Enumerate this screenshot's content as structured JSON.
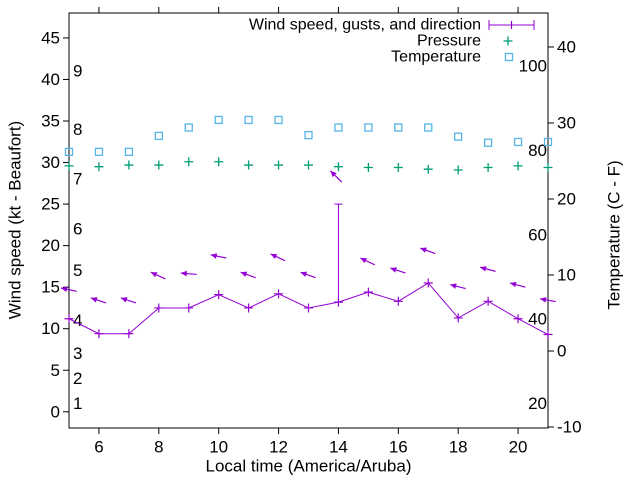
{
  "chart_data": {
    "type": "line",
    "title": "",
    "xlabel": "Local time (America/Aruba)",
    "ylabel": "Wind speed (kt - Beaufort)",
    "y2label": "Temperature (C - F)",
    "x_hours": [
      5,
      6,
      7,
      8,
      9,
      10,
      11,
      12,
      13,
      14,
      15,
      16,
      17,
      18,
      19,
      20,
      21
    ],
    "xticks": [
      6,
      8,
      10,
      12,
      14,
      16,
      18,
      20
    ],
    "yticks_kt": [
      0,
      5,
      10,
      15,
      20,
      25,
      30,
      35,
      40,
      45
    ],
    "y2ticks_c": [
      -10,
      0,
      10,
      20,
      30,
      40
    ],
    "xlim": [
      5,
      21
    ],
    "ylim_kt": [
      -1.95,
      48.0
    ],
    "y2lim_c": [
      -10.13,
      44.47
    ],
    "grid": false,
    "beaufort_labels": [
      {
        "text": "1",
        "kt": 1
      },
      {
        "text": "2",
        "kt": 4
      },
      {
        "text": "3",
        "kt": 7
      },
      {
        "text": "4",
        "kt": 11
      },
      {
        "text": "5",
        "kt": 17
      },
      {
        "text": "6",
        "kt": 22
      },
      {
        "text": "7",
        "kt": 28
      },
      {
        "text": "8",
        "kt": 34
      },
      {
        "text": "9",
        "kt": 41
      }
    ],
    "fahrenheit_labels": [
      {
        "text": "20",
        "f": 20
      },
      {
        "text": "40",
        "f": 40
      },
      {
        "text": "60",
        "f": 60
      },
      {
        "text": "80",
        "f": 80
      },
      {
        "text": "100",
        "f": 100
      }
    ],
    "series": [
      {
        "name": "Wind speed, gusts, and direction",
        "style": "line-points-vectors-errorbar",
        "color": "#9400d3",
        "wind_kt": [
          11.2,
          9.4,
          9.4,
          12.5,
          12.5,
          14.1,
          12.5,
          14.2,
          12.5,
          13.2,
          14.4,
          13.3,
          15.5,
          11.3,
          13.3,
          11.2,
          9.3
        ],
        "arrow_tip_kt": [
          14.9,
          13.7,
          13.7,
          16.8,
          16.7,
          18.9,
          16.8,
          19.0,
          16.8,
          29.0,
          18.5,
          17.3,
          19.7,
          15.3,
          17.4,
          15.5,
          13.6
        ],
        "arrow_tilt_deg": [
          12,
          18,
          18,
          25,
          5,
          12,
          20,
          25,
          20,
          45,
          25,
          18,
          20,
          14,
          15,
          15,
          10
        ],
        "gust_bar": {
          "hour": 14,
          "from_kt": 13.2,
          "to_kt": 25
        }
      },
      {
        "name": "Pressure",
        "style": "points-plus",
        "color": "#009e73",
        "values": [
          29.6,
          29.5,
          29.7,
          29.7,
          30.1,
          30.1,
          29.7,
          29.7,
          29.7,
          29.5,
          29.4,
          29.4,
          29.2,
          29.1,
          29.4,
          29.6,
          29.4
        ]
      },
      {
        "name": "Temperature",
        "style": "points-open-square",
        "color": "#56b4e9",
        "axis": "y2",
        "values_c": [
          26.2,
          26.2,
          26.2,
          28.3,
          29.4,
          30.4,
          30.4,
          30.4,
          28.4,
          29.4,
          29.4,
          29.4,
          29.4,
          28.2,
          27.4,
          27.5,
          27.5
        ]
      }
    ],
    "legend": {
      "position": "top-right-inside",
      "entries": [
        "Wind speed, gusts, and direction",
        "Pressure",
        "Temperature"
      ]
    },
    "colors": {
      "axis": "#000000",
      "background": "#ffffff",
      "wind": "#9400d3",
      "pressure": "#009e73",
      "temperature": "#56b4e9"
    }
  }
}
